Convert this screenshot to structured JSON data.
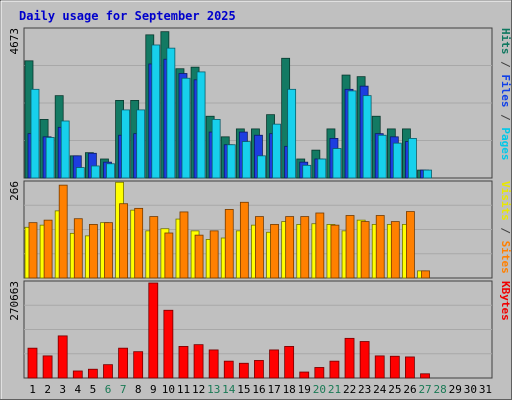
{
  "chart_data": {
    "type": "bar",
    "title": "Daily usage for September 2025",
    "days": [
      "1",
      "2",
      "3",
      "4",
      "5",
      "6",
      "7",
      "8",
      "9",
      "10",
      "11",
      "12",
      "13",
      "14",
      "15",
      "16",
      "17",
      "18",
      "19",
      "20",
      "21",
      "22",
      "23",
      "24",
      "25",
      "26",
      "27",
      "28",
      "29",
      "30",
      "31"
    ],
    "weekend_days": [
      "6",
      "7",
      "13",
      "14",
      "20",
      "21",
      "27",
      "28"
    ],
    "panels": [
      {
        "id": "hits",
        "ymax_label": "4673",
        "ymax": 4673,
        "right_labels": [
          {
            "text": "Pages",
            "color": "#00c8e8"
          },
          {
            "text": " / ",
            "color": "#404040"
          },
          {
            "text": "Files",
            "color": "#1040e8"
          },
          {
            "text": " / ",
            "color": "#404040"
          },
          {
            "text": "Hits",
            "color": "#107860"
          }
        ],
        "series": [
          {
            "name": "Hits",
            "color": "#137a63",
            "values": [
              3700,
              1850,
              2600,
              700,
              800,
              600,
              2450,
              2450,
              4520,
              4620,
              3450,
              3500,
              1950,
              1300,
              1550,
              1550,
              2000,
              3780,
              600,
              880,
              1550,
              3250,
              3200,
              1950,
              1550,
              1550,
              250,
              0,
              0,
              0,
              0
            ]
          },
          {
            "name": "Files",
            "color": "#1d3de0",
            "values": [
              1400,
              1300,
              1600,
              700,
              780,
              500,
              1350,
              1400,
              3600,
              3750,
              3300,
              3100,
              1450,
              1050,
              1450,
              1350,
              1400,
              1000,
              500,
              600,
              1250,
              2800,
              2900,
              1400,
              1300,
              1150,
              250,
              0,
              0,
              0,
              0
            ]
          },
          {
            "name": "Pages",
            "color": "#17d0ec",
            "values": [
              2800,
              1280,
              1800,
              330,
              380,
              450,
              2150,
              2150,
              4200,
              4100,
              3150,
              3350,
              1850,
              1050,
              1150,
              700,
              1700,
              2800,
              400,
              600,
              930,
              2750,
              2600,
              1350,
              1100,
              1250,
              250,
              0,
              0,
              0,
              0
            ]
          }
        ]
      },
      {
        "id": "visits",
        "ymax_label": "266",
        "ymax": 266,
        "right_labels": [
          {
            "text": "Sites",
            "color": "#ff8000"
          },
          {
            "text": " / ",
            "color": "#404040"
          },
          {
            "text": "Visits",
            "color": "#e8e800"
          }
        ],
        "series": [
          {
            "name": "Visits",
            "color": "#ffff00",
            "values": [
              142,
              148,
              188,
              125,
              118,
              155,
              268,
              190,
              132,
              138,
              165,
              132,
              108,
              112,
              132,
              148,
              128,
              158,
              150,
              152,
              150,
              132,
              162,
              150,
              150,
              150,
              20,
              0,
              0,
              0,
              0
            ]
          },
          {
            "name": "Sites",
            "color": "#ff8000",
            "values": [
              155,
              162,
              260,
              166,
              150,
              155,
              208,
              195,
              172,
              126,
              185,
              120,
              132,
              192,
              212,
              172,
              150,
              172,
              172,
              182,
              148,
              175,
              158,
              175,
              158,
              186,
              20,
              0,
              0,
              0,
              0
            ]
          }
        ]
      },
      {
        "id": "kbytes",
        "ymax_label": "270663",
        "ymax": 270663,
        "right_labels": [
          {
            "text": "KBytes",
            "color": "#f00000"
          }
        ],
        "series": [
          {
            "name": "KBytes",
            "color": "#ff0000",
            "values": [
              85000,
              63000,
              120000,
              20000,
              25000,
              38000,
              85000,
              75000,
              270663,
              193000,
              90000,
              95000,
              80000,
              48000,
              42000,
              50000,
              80000,
              90000,
              17000,
              30000,
              48000,
              113000,
              104000,
              63000,
              62000,
              60000,
              12000,
              0,
              0,
              0,
              0
            ]
          }
        ]
      }
    ]
  }
}
